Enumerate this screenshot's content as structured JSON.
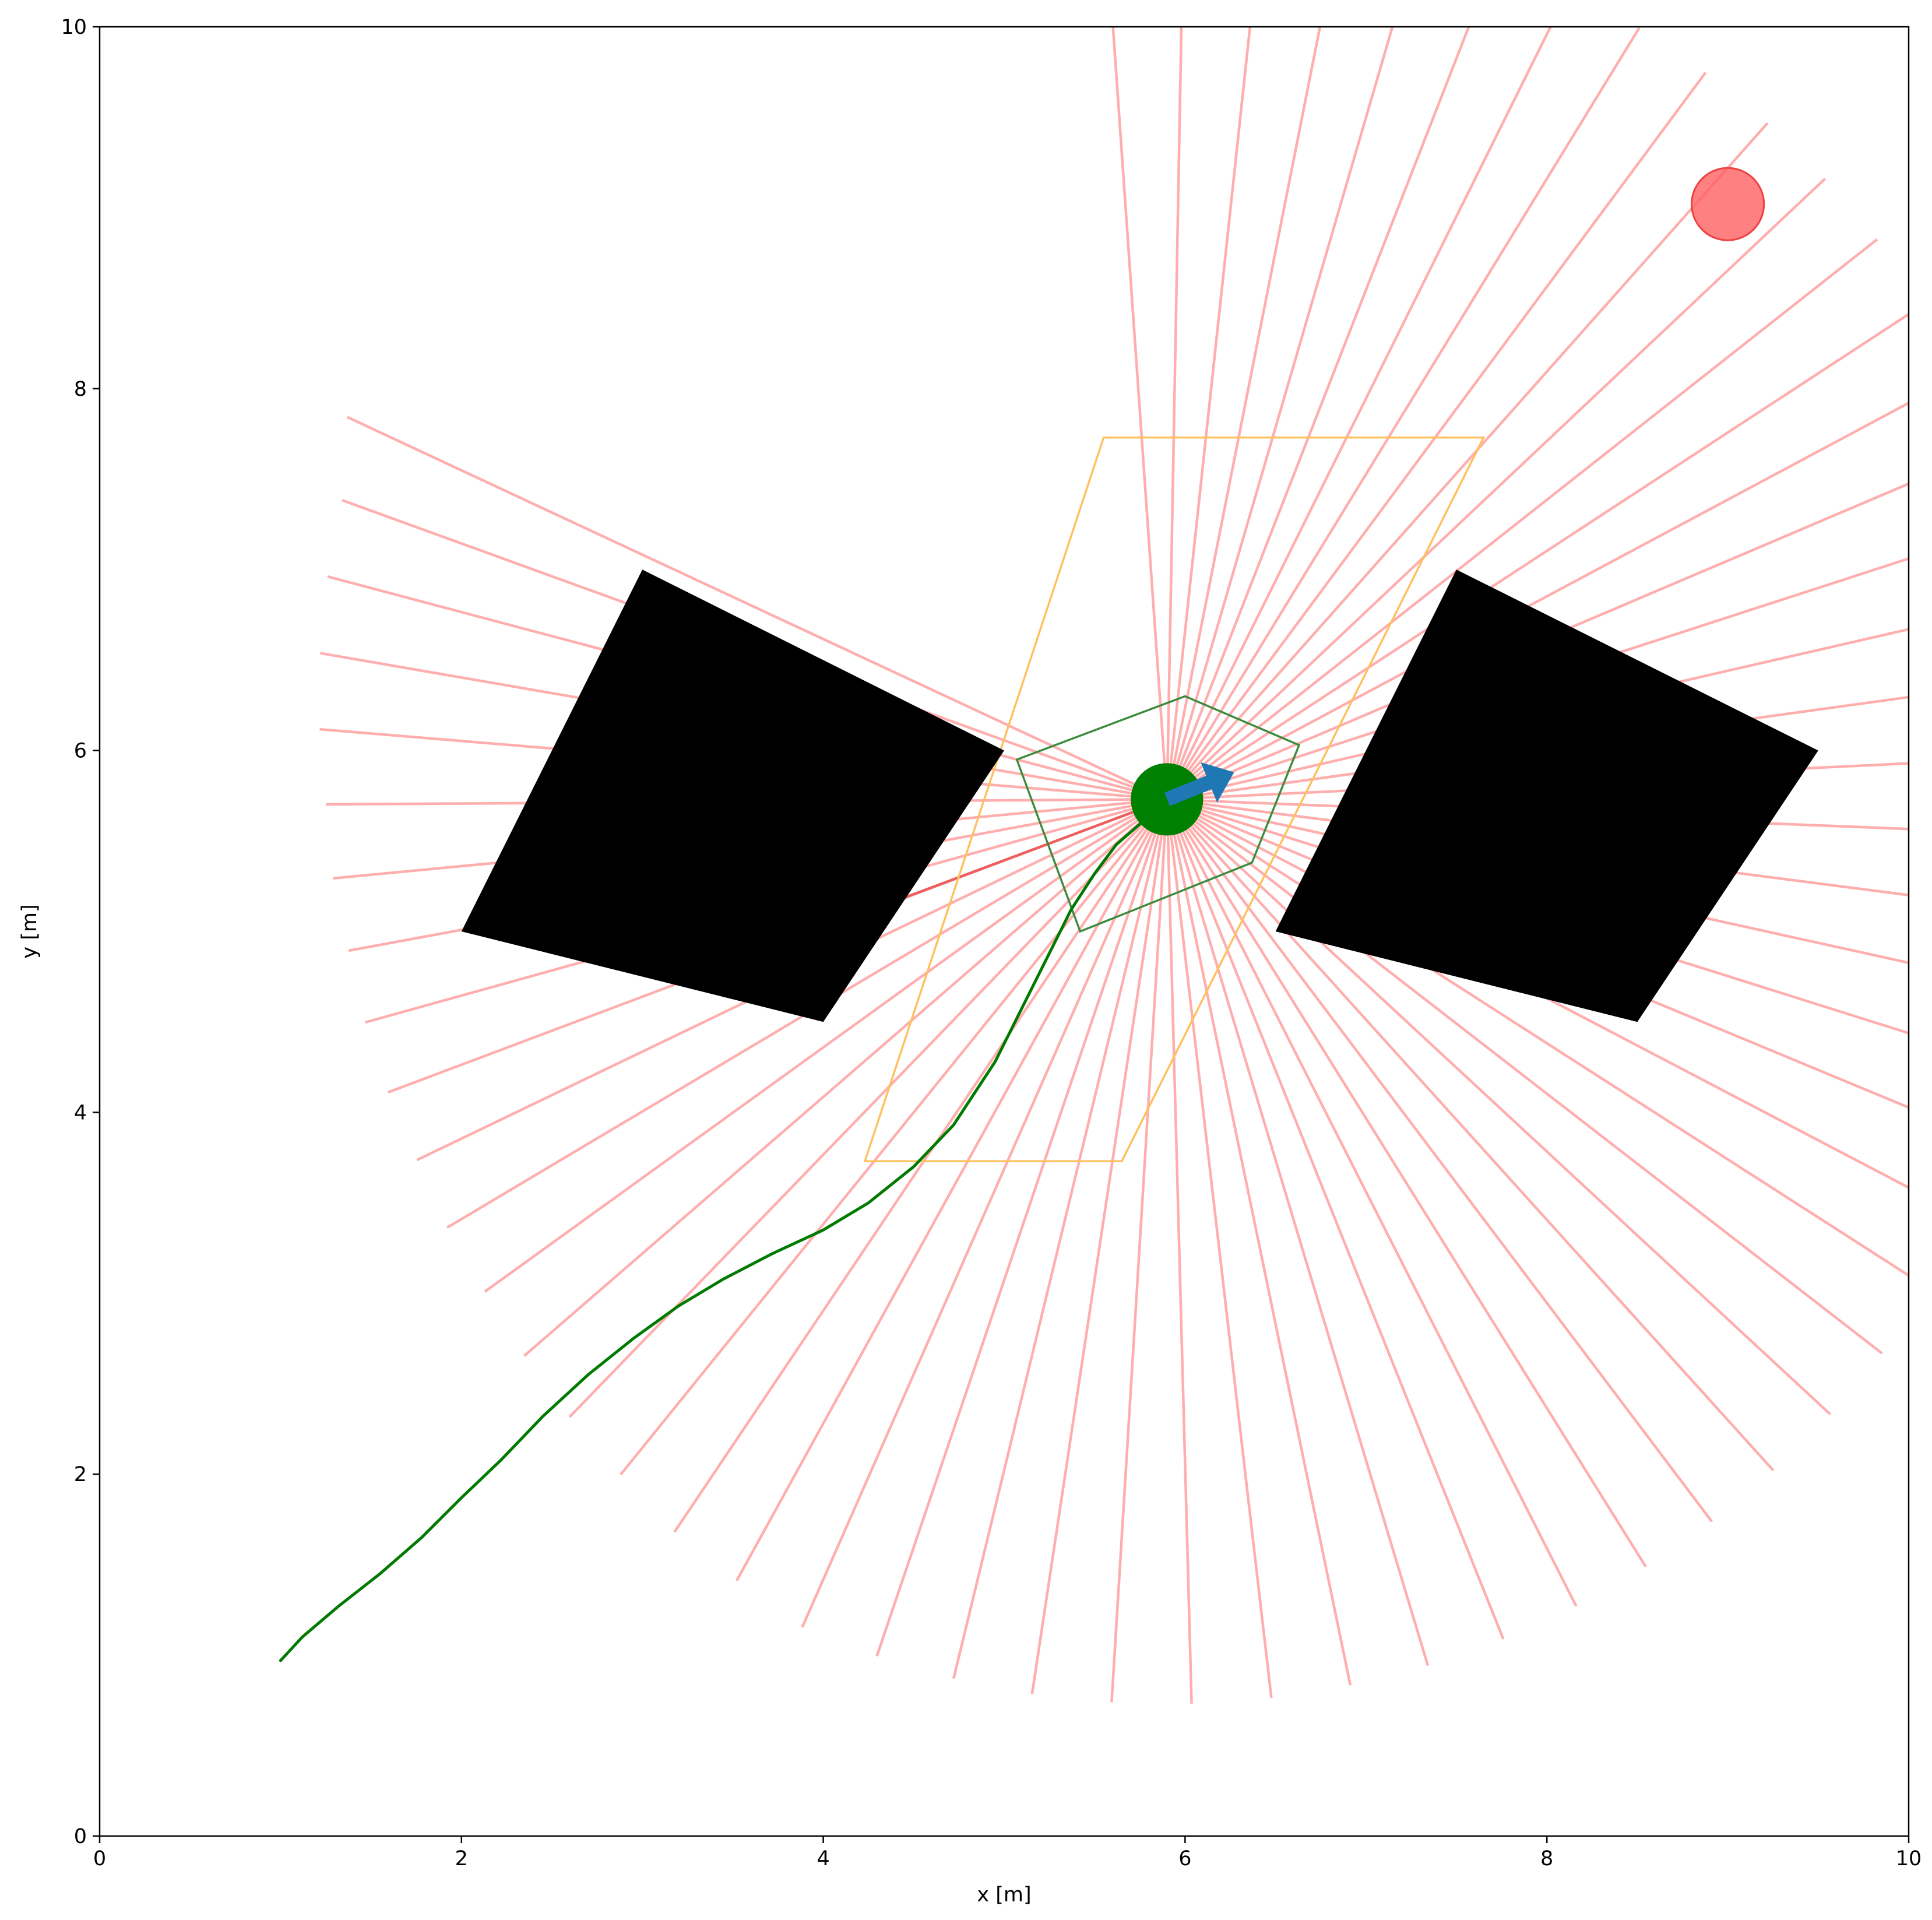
{
  "chart_data": {
    "type": "scatter",
    "title": "",
    "xlabel": "x [m]",
    "ylabel": "y [m]",
    "xlim": [
      0,
      10
    ],
    "ylim": [
      0,
      10
    ],
    "x_ticks": [
      "0",
      "2",
      "4",
      "6",
      "8",
      "10"
    ],
    "y_ticks": [
      "0",
      "2",
      "4",
      "6",
      "8",
      "10"
    ],
    "grid": false,
    "robot": {
      "position": [
        5.9,
        5.73
      ],
      "radius": 0.2,
      "heading_deg": 22,
      "color": "#008000",
      "heading_arrow_color": "#1f77b4"
    },
    "goal": {
      "position": [
        9.0,
        9.02
      ],
      "radius": 0.2,
      "color": "#ff6060"
    },
    "lidar": {
      "num_beams": 60,
      "start_angle_deg": 155,
      "end_angle_deg": 454,
      "color": "#ff9a9a",
      "ranges": [
        5.0,
        4.85,
        4.8,
        4.75,
        4.7,
        4.65,
        4.63,
        4.6,
        4.6,
        4.6,
        4.6,
        4.63,
        4.65,
        4.7,
        4.75,
        4.8,
        4.88,
        4.93,
        5.0,
        5.0,
        5.0,
        5.0,
        5.0,
        5.0,
        5.0,
        5.0,
        5.0,
        5.0,
        5.0,
        5.0,
        5.0,
        5.0,
        5.0,
        5.0,
        5.0,
        5.0,
        5.0,
        5.0,
        5.0,
        5.0,
        5.0,
        5.0,
        5.0,
        5.0,
        5.0,
        5.0,
        5.0,
        5.0,
        5.0,
        5.0,
        5.0,
        5.0,
        5.0,
        5.0,
        5.0,
        5.0,
        5.0,
        5.0,
        5.0,
        5.0
      ],
      "highlight_beam": {
        "from": [
          5.9,
          5.73
        ],
        "to": [
          4.35,
          5.15
        ],
        "color": "#e84a4a"
      }
    },
    "obstacles": [
      {
        "vertices": [
          [
            3.0,
            7.0
          ],
          [
            5.0,
            6.0
          ],
          [
            4.0,
            4.5
          ],
          [
            2.0,
            5.0
          ]
        ],
        "color": "#000000"
      },
      {
        "vertices": [
          [
            7.5,
            7.0
          ],
          [
            9.5,
            6.0
          ],
          [
            8.5,
            4.5
          ],
          [
            6.5,
            5.0
          ]
        ],
        "color": "#000000"
      }
    ],
    "pentagon": {
      "vertices": [
        [
          6.0,
          6.3
        ],
        [
          6.63,
          6.03
        ],
        [
          6.37,
          5.38
        ],
        [
          5.42,
          5.0
        ],
        [
          5.07,
          5.95
        ]
      ],
      "color": "#3d8b3d"
    },
    "parallelogram": {
      "vertices": [
        [
          5.55,
          7.73
        ],
        [
          7.65,
          7.73
        ],
        [
          5.65,
          3.73
        ],
        [
          4.23,
          3.73
        ]
      ],
      "color": "#ffc060"
    },
    "trajectory": {
      "color": "#007a00",
      "x": [
        1.0,
        1.12,
        1.32,
        1.55,
        1.78,
        2.0,
        2.22,
        2.45,
        2.7,
        2.95,
        3.2,
        3.45,
        3.72,
        4.0,
        4.25,
        4.5,
        4.72,
        4.95,
        5.12,
        5.25,
        5.37,
        5.5,
        5.62,
        5.78,
        5.87
      ],
      "y": [
        0.97,
        1.1,
        1.27,
        1.45,
        1.65,
        1.87,
        2.08,
        2.32,
        2.55,
        2.75,
        2.93,
        3.08,
        3.22,
        3.35,
        3.5,
        3.7,
        3.93,
        4.28,
        4.62,
        4.88,
        5.12,
        5.32,
        5.48,
        5.62,
        5.72
      ]
    }
  }
}
